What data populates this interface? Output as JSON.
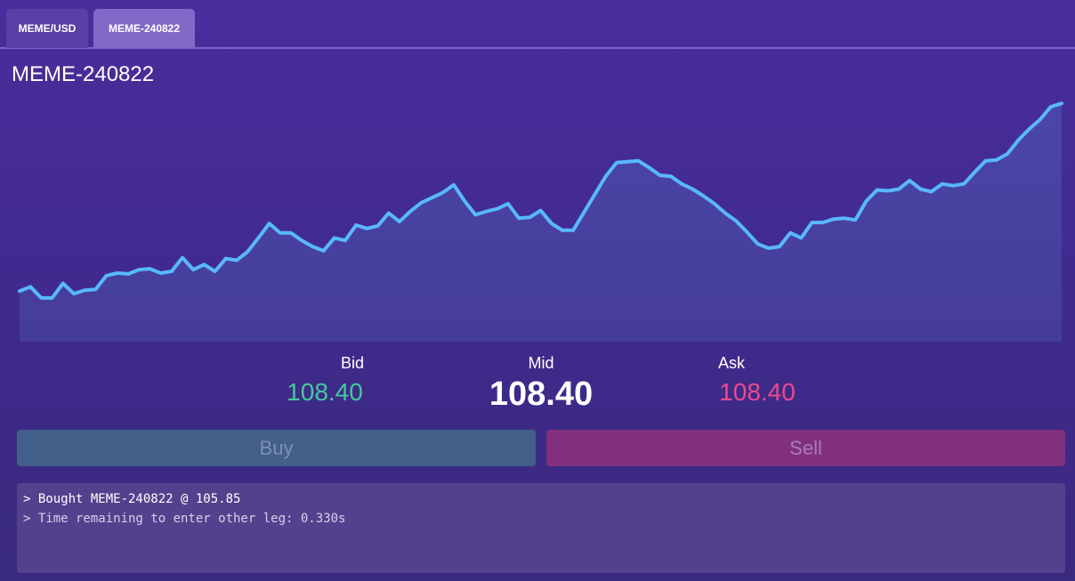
{
  "tabs": [
    {
      "label": "MEME/USD",
      "active": false
    },
    {
      "label": "MEME-240822",
      "active": true
    }
  ],
  "page_title": "MEME-240822",
  "chart_data": {
    "type": "area",
    "title": "",
    "xlabel": "",
    "ylabel": "",
    "ylim": [
      0,
      300
    ],
    "line_color": "#58b8ff",
    "fill_color": "#4a3f9c",
    "values": [
      59,
      64,
      51,
      51,
      68,
      56,
      60,
      61,
      77,
      80,
      79,
      84,
      85,
      80,
      82,
      98,
      84,
      90,
      82,
      97,
      95,
      105,
      121,
      138,
      127,
      127,
      118,
      111,
      106,
      121,
      118,
      136,
      132,
      135,
      150,
      140,
      152,
      162,
      168,
      174,
      183,
      164,
      148,
      152,
      155,
      161,
      144,
      145,
      153,
      138,
      130,
      130,
      151,
      172,
      193,
      209,
      210,
      211,
      203,
      194,
      193,
      184,
      178,
      170,
      161,
      150,
      141,
      128,
      114,
      109,
      111,
      127,
      121,
      139,
      139,
      143,
      144,
      142,
      164,
      177,
      176,
      178,
      188,
      178,
      175,
      184,
      182,
      184,
      198,
      211,
      212,
      219,
      235,
      248,
      259,
      274,
      278
    ]
  },
  "quote": {
    "bid_label": "Bid",
    "bid": "108.40",
    "mid_label": "Mid",
    "mid": "108.40",
    "ask_label": "Ask",
    "ask": "108.40"
  },
  "actions": {
    "buy_label": "Buy",
    "sell_label": "Sell"
  },
  "log": {
    "lines": [
      "> Bought MEME-240822 @ 105.85",
      "> Time remaining to enter other leg: 0.330s"
    ]
  }
}
